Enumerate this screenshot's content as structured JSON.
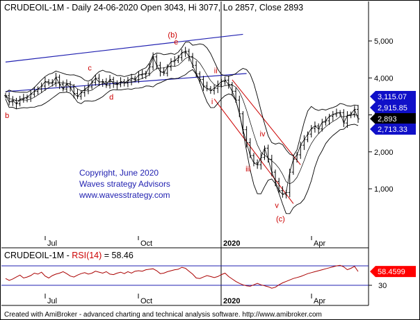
{
  "header": {
    "symbol": "CRUDEOIL-1M",
    "info": " - Daily 24-06-2020 Open 3043, Hi 3077, Lo 2857, Close 2893"
  },
  "rsi_header": {
    "prefix": "CRUDEOIL-1M - ",
    "name": "RSI(14)",
    "value_text": " = 58.46"
  },
  "copyright": {
    "line1": "Copyright, June 2020",
    "line2": "Waves strategy Advisors",
    "line3": "www.wavesstrategy.com"
  },
  "footer": "Created with AmiBroker - advanced charting and technical analysis software. http://www.amibroker.com",
  "colors": {
    "price": "#000000",
    "bands": "#000000",
    "channel": "#1f1fb0",
    "wave": "#cc0000",
    "rsi": "#aa0000",
    "level_line": "#1f1fb0",
    "tag_blue": "#1010c8",
    "tag_black": "#000000",
    "tag_red": "#ff0000"
  },
  "chart_data": [
    {
      "type": "line",
      "title": "CRUDEOIL-1M - Daily 24-06-2020 Open 3043, Hi 3077, Lo 2857, Close 2893",
      "x_ticks": [
        "Jul",
        "Oct",
        "2020",
        "Apr"
      ],
      "y_ticks": [
        1000,
        2000,
        3000,
        4000,
        5000
      ],
      "ylim": [
        0,
        5500
      ],
      "series": [
        {
          "values": [
            3520,
            3350,
            3390,
            3300,
            3420,
            3450,
            3480,
            3560,
            3640,
            3700,
            3780,
            3900,
            3860,
            3870,
            4020,
            3830,
            3700,
            3840,
            3740,
            3580,
            3500,
            3600,
            3690,
            3760,
            3880,
            3990,
            3890,
            3900,
            3800,
            3960,
            3840,
            3820,
            3900,
            3860,
            3930,
            3990,
            3950,
            4080,
            4100,
            4120,
            4300,
            4570,
            4340,
            4170,
            4130,
            4300,
            4440,
            4470,
            4550,
            4680,
            4720,
            4580,
            4340,
            4110,
            3960,
            3780,
            3710,
            3660,
            3720,
            3810,
            3900,
            3940,
            3820,
            3640,
            3400,
            3030,
            2600,
            2250,
            1900,
            1700,
            1650,
            1850,
            2100,
            1800,
            1450,
            1200,
            950,
            850,
            900,
            1450,
            1800,
            1920,
            2180,
            2330,
            2480,
            2630,
            2700,
            2620,
            2800,
            2840,
            2960,
            3010,
            3050,
            3060,
            2780,
            2980,
            3020,
            3150,
            2893
          ]
        }
      ],
      "value_tags": [
        {
          "label": "3,115.07",
          "style": "blue"
        },
        {
          "label": "2,915.85",
          "style": "blue"
        },
        {
          "label": "2,893",
          "style": "black"
        },
        {
          "label": "2,713.33",
          "style": "blue"
        }
      ],
      "wave_labels": [
        "b",
        "c",
        "d",
        "(b)",
        "e",
        "i",
        "ii",
        "iii",
        "iv",
        "v",
        "(c)"
      ]
    },
    {
      "type": "line",
      "title": "CRUDEOIL-1M - RSI(14) = 58.46",
      "x_ticks": [
        "Jul",
        "Oct",
        "2020",
        "Apr"
      ],
      "y_ticks": [
        30
      ],
      "ylim": [
        20,
        85
      ],
      "levels": [
        70,
        30
      ],
      "series": [
        {
          "values": [
            44,
            40,
            43,
            47,
            51,
            45,
            47,
            50,
            55,
            53,
            57,
            49,
            45,
            50,
            53,
            55,
            58,
            54,
            49,
            47,
            51,
            54,
            56,
            53,
            55,
            59,
            57,
            55,
            58,
            53,
            52,
            55,
            57,
            54,
            58,
            55,
            59,
            60,
            59,
            62,
            63,
            64,
            60,
            54,
            55,
            58,
            60,
            62,
            63,
            67,
            65,
            59,
            53,
            45,
            44,
            47,
            50,
            48,
            46,
            48,
            52,
            55,
            48,
            43,
            38,
            34,
            31,
            29,
            28,
            31,
            34,
            31,
            29,
            27,
            24,
            26,
            31,
            35,
            38,
            41,
            44,
            46,
            48,
            51,
            54,
            56,
            58,
            60,
            62,
            64,
            66,
            68,
            70,
            71,
            68,
            62,
            65,
            69,
            58.46
          ]
        }
      ],
      "value_tags": [
        {
          "label": "58.4599",
          "style": "red"
        }
      ]
    }
  ]
}
